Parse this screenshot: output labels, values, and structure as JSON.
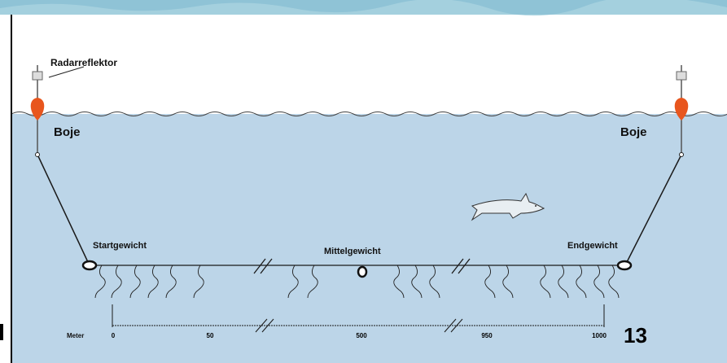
{
  "labels": {
    "radar": "Radarreflektor",
    "boje_left": "Boje",
    "boje_right": "Boje",
    "start_weight": "Startgewicht",
    "mid_weight": "Mittelgewicht",
    "end_weight": "Endgewicht"
  },
  "scale": {
    "unit": "Meter",
    "ticks": [
      "0",
      "50",
      "500",
      "950",
      "1000"
    ]
  },
  "page_number": "13",
  "colors": {
    "water": "#bcd5e8",
    "buoy": "#e8561e",
    "header": "#8fc3d6",
    "line": "#1a1a1a"
  }
}
